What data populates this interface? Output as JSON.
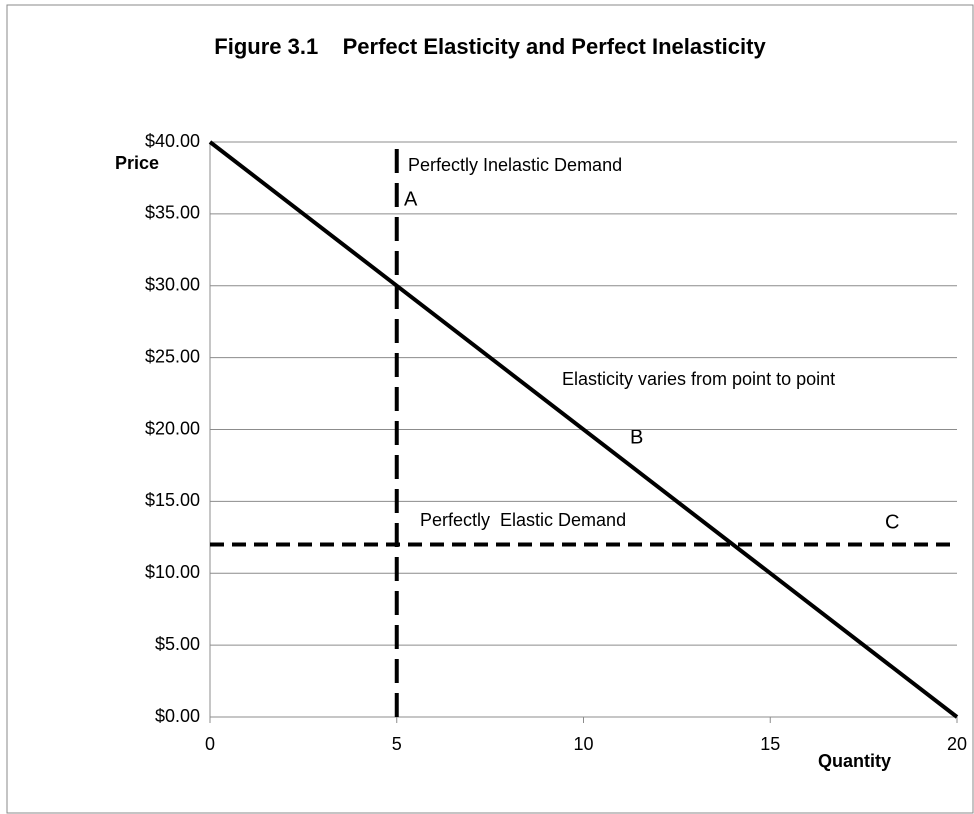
{
  "chart_data": {
    "type": "line",
    "title": "Figure 3.1    Perfect Elasticity and Perfect Inelasticity",
    "y_label": "Price",
    "x_label": "Quantity",
    "xlim": [
      0,
      20
    ],
    "xticks": [
      0,
      5,
      10,
      15,
      20
    ],
    "ylim": [
      0,
      40
    ],
    "yticks": [
      {
        "value": 0,
        "label": "$0.00"
      },
      {
        "value": 5,
        "label": "$5.00"
      },
      {
        "value": 10,
        "label": "$10.00"
      },
      {
        "value": 15,
        "label": "$15.00"
      },
      {
        "value": 20,
        "label": "$20.00"
      },
      {
        "value": 25,
        "label": "$25.00"
      },
      {
        "value": 30,
        "label": "$30.00"
      },
      {
        "value": 35,
        "label": "$35.00"
      },
      {
        "value": 40,
        "label": "$40.00"
      }
    ],
    "grid": true,
    "series": [
      {
        "x": [
          0,
          20
        ],
        "values": [
          40,
          0
        ],
        "color": "#000000",
        "style": "solid"
      },
      {
        "x": [
          5,
          5
        ],
        "values": [
          0,
          40
        ],
        "color": "#000000",
        "style": "long-dash"
      },
      {
        "x": [
          0,
          20
        ],
        "values": [
          12,
          12
        ],
        "color": "#000000",
        "style": "dash"
      }
    ],
    "annotations": [
      "Perfectly Inelastic Demand",
      "A",
      "Elasticity varies from point to point",
      "B",
      "Perfectly  Elastic Demand",
      "C"
    ]
  }
}
